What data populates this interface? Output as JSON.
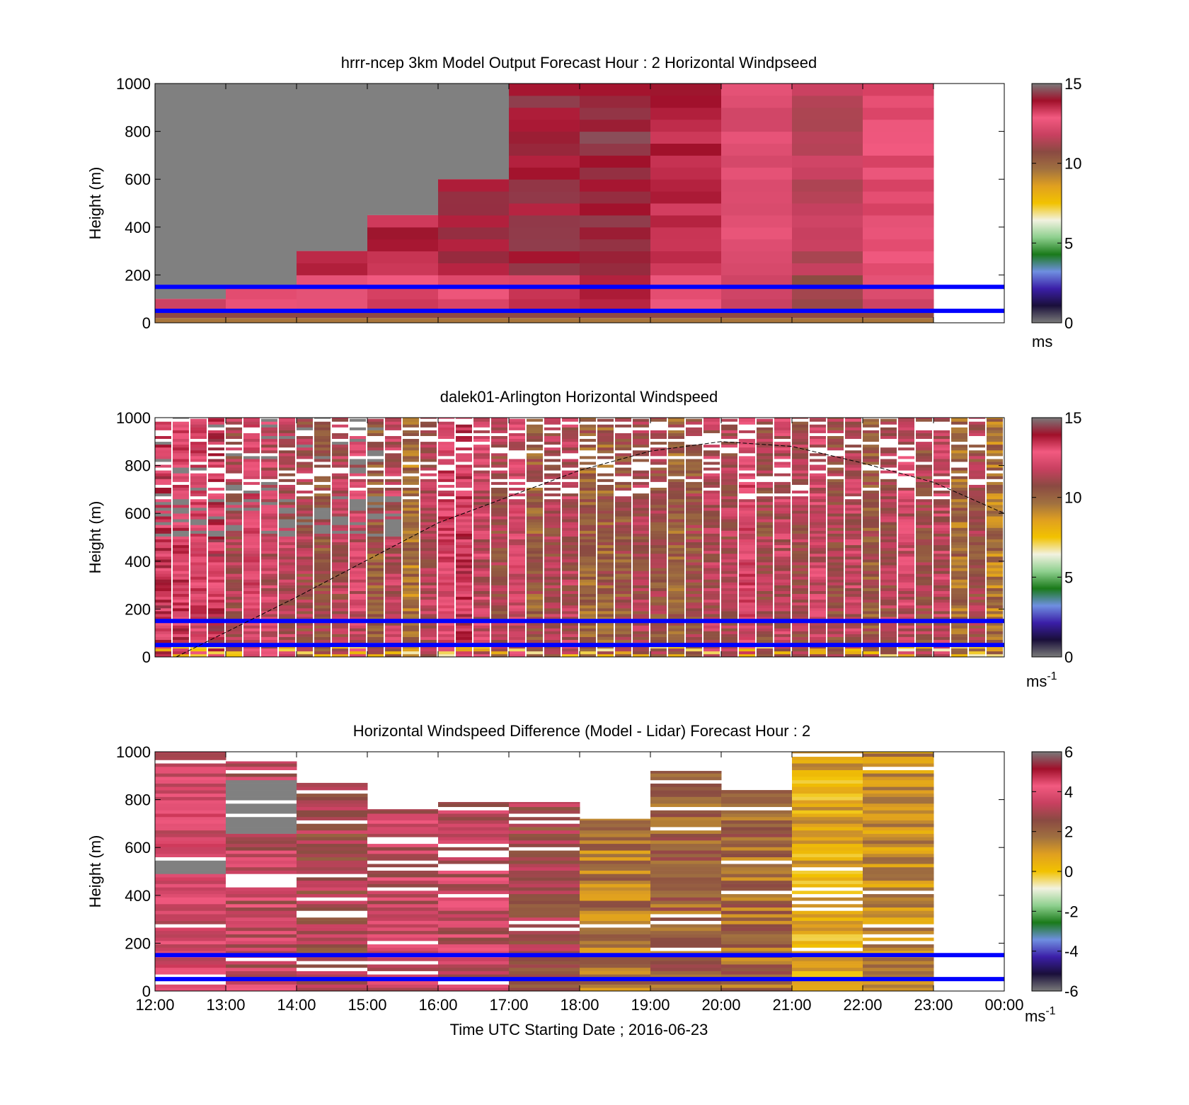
{
  "colors": {
    "windspeed_scale": [
      "#7a7a7a",
      "#1a0f3a",
      "#3b1fa8",
      "#6f8fe0",
      "#1a7a1a",
      "#8fd08f",
      "#f2f2e0",
      "#f2c200",
      "#e0a020",
      "#a07040",
      "#8a4a42",
      "#c84060",
      "#f25a80",
      "#a0102a",
      "#7a7a7a"
    ],
    "difference_scale": [
      "#7a7a7a",
      "#1a0f3a",
      "#3b1fa8",
      "#6f8fe0",
      "#1a7a1a",
      "#8fd08f",
      "#f2f2e0",
      "#f2c200",
      "#e0a020",
      "#a07040",
      "#8a4a42",
      "#c84060",
      "#f25a80",
      "#a0102a",
      "#7a7a7a"
    ],
    "blue_lines": "#0000ff",
    "missing": "#808080"
  },
  "chart_data": [
    {
      "type": "heatmap",
      "title": "hrrr-ncep 3km Model Output   Forecast Hour : 2 Horizontal Windpseed",
      "ylabel": "Height (m)",
      "xlim": [
        "12:00",
        "00:00"
      ],
      "ylim": [
        0,
        1000
      ],
      "yticks": [
        "0",
        "200",
        "400",
        "600",
        "800",
        "1000"
      ],
      "colorbar": {
        "ticks": [
          "0",
          "5",
          "10",
          "15"
        ],
        "range": [
          0,
          15
        ],
        "unit": "ms"
      },
      "reference_lines_m": [
        50,
        150
      ],
      "hours": [
        "12:00",
        "13:00",
        "14:00",
        "15:00",
        "16:00",
        "17:00",
        "18:00",
        "19:00",
        "20:00",
        "21:00",
        "22:00"
      ],
      "column_values": [
        12.8,
        13.3,
        13.5,
        13.6,
        13.9,
        14.0,
        14.2,
        13.6,
        12.4,
        11.6,
        12.9
      ],
      "missing_above_m": [
        100,
        150,
        300,
        450,
        600,
        1000,
        1000,
        1000,
        1000,
        1000,
        1000
      ]
    },
    {
      "type": "heatmap",
      "title": "dalek01-Arlington  Horizontal Windspeed",
      "ylabel": "Height (m)",
      "xlim": [
        "12:00",
        "00:00"
      ],
      "ylim": [
        0,
        1000
      ],
      "yticks": [
        "0",
        "200",
        "400",
        "600",
        "800",
        "1000"
      ],
      "colorbar": {
        "ticks": [
          "0",
          "5",
          "10",
          "15"
        ],
        "range": [
          0,
          15
        ],
        "unit": "ms",
        "unit_exponent": "-1"
      },
      "reference_lines_m": [
        50,
        150
      ],
      "boundary_layer_curve": {
        "x_hours": [
          12.3,
          14,
          16,
          18,
          19,
          20,
          21,
          22,
          23,
          24
        ],
        "heights_m": [
          0,
          250,
          560,
          780,
          860,
          900,
          880,
          810,
          730,
          600
        ]
      },
      "column_mean_values": [
        13.2,
        13.0,
        12.6,
        13.4,
        11.2,
        12.5,
        11.8,
        11.5,
        11.0,
        10.6,
        11.3,
        12.0,
        10.4,
        11.5,
        9.6,
        11.4,
        12.7,
        13.1,
        11.8,
        11.0,
        12.2,
        10.3,
        11.1,
        11.4,
        10.1,
        10.2,
        10.5,
        11.1,
        10.7,
        10.2,
        10.6,
        11.4,
        11.3,
        12.5,
        11.0,
        11.7,
        11.2,
        12.0,
        10.9,
        11.6,
        10.4,
        11.2,
        11.9,
        11.0,
        11.6,
        9.8,
        10.9,
        9.5
      ]
    },
    {
      "type": "heatmap",
      "title": "Horizontal Windspeed Difference (Model - Lidar) Forecast Hour : 2",
      "xlabel": "Time UTC  Starting Date ; 2016-06-23",
      "ylabel": "Height (m)",
      "xticks": [
        "12:00",
        "13:00",
        "14:00",
        "15:00",
        "16:00",
        "17:00",
        "18:00",
        "19:00",
        "20:00",
        "21:00",
        "22:00",
        "23:00",
        "00:00"
      ],
      "ylim": [
        0,
        1000
      ],
      "yticks": [
        "0",
        "200",
        "400",
        "600",
        "800",
        "1000"
      ],
      "colorbar": {
        "ticks": [
          "-6",
          "-4",
          "-2",
          "0",
          "2",
          "4",
          "6"
        ],
        "range": [
          -6,
          6
        ],
        "unit": "ms",
        "unit_exponent": "-1"
      },
      "reference_lines_m": [
        50,
        150
      ],
      "hours": [
        "12:00",
        "13:00",
        "14:00",
        "15:00",
        "16:00",
        "17:00",
        "18:00",
        "19:00",
        "20:00",
        "21:00",
        "22:00"
      ],
      "column_values": [
        3.8,
        3.4,
        2.9,
        3.5,
        3.4,
        2.8,
        1.6,
        2.0,
        1.9,
        0.6,
        1.2
      ],
      "data_top_m": [
        1000,
        960,
        870,
        760,
        790,
        790,
        720,
        920,
        840,
        1000,
        1000
      ]
    }
  ]
}
